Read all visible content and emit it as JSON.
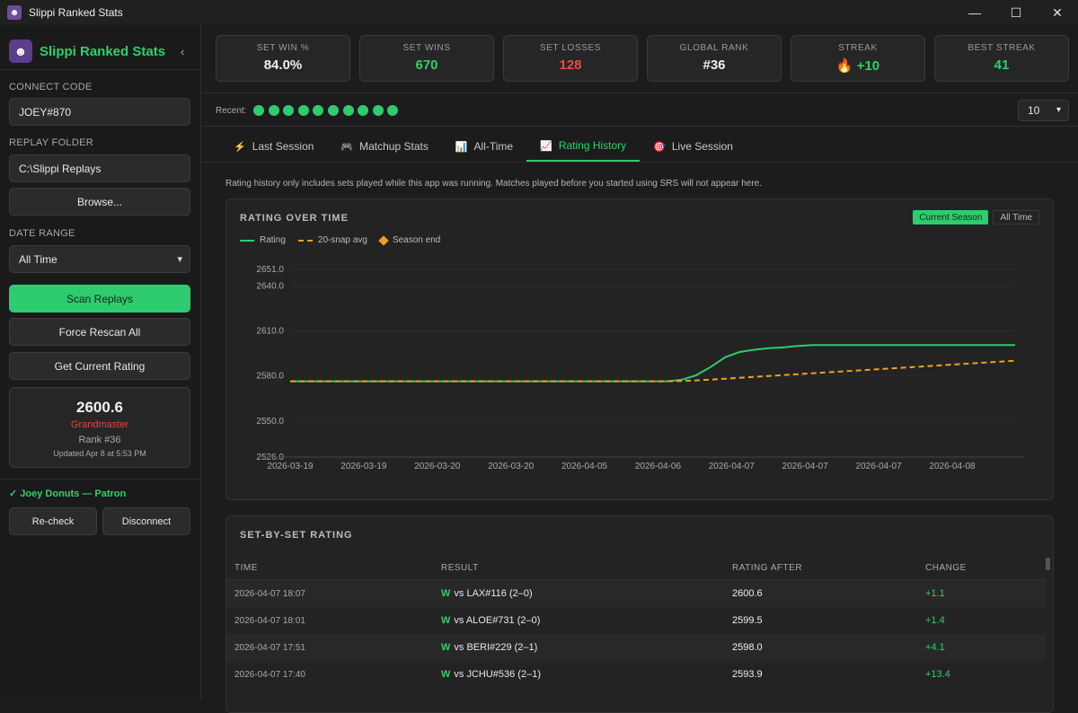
{
  "window": {
    "title": "Slippi Ranked Stats",
    "controls": [
      "—",
      "☐",
      "✕"
    ]
  },
  "sidebar": {
    "brand": "Slippi Ranked Stats",
    "collapse_glyph": "‹",
    "connect_code_label": "CONNECT CODE",
    "connect_code_value": "JOEY#870",
    "replay_folder_label": "REPLAY FOLDER",
    "replay_folder_value": "C:\\Slippi Replays",
    "browse_label": "Browse...",
    "date_range_label": "DATE RANGE",
    "date_range_value": "All Time",
    "scan_label": "Scan Replays",
    "force_rescan_label": "Force Rescan All",
    "get_rating_label": "Get Current Rating",
    "rating": {
      "value": "2600.6",
      "tier": "Grandmaster",
      "rank": "Rank #36",
      "updated": "Updated Apr 8 at 5:53 PM"
    },
    "patron": "✓ Joey Donuts — Patron",
    "recheck_label": "Re-check",
    "disconnect_label": "Disconnect"
  },
  "stats": [
    {
      "label": "SET WIN %",
      "value": "84.0%",
      "tone": "white"
    },
    {
      "label": "SET WINS",
      "value": "670",
      "tone": "green"
    },
    {
      "label": "SET LOSSES",
      "value": "128",
      "tone": "red"
    },
    {
      "label": "GLOBAL RANK",
      "value": "#36",
      "tone": "white"
    },
    {
      "label": "STREAK",
      "value": "🔥 +10",
      "tone": "green"
    },
    {
      "label": "BEST STREAK",
      "value": "41",
      "tone": "green"
    }
  ],
  "recent": {
    "label": "Recent:",
    "results": [
      "W",
      "W",
      "W",
      "W",
      "W",
      "W",
      "W",
      "W",
      "W",
      "W"
    ],
    "count_value": "10"
  },
  "tabs": [
    {
      "label": "Last Session",
      "icon": "⚡"
    },
    {
      "label": "Matchup Stats",
      "icon": "🎮"
    },
    {
      "label": "All-Time",
      "icon": "📊"
    },
    {
      "label": "Rating History",
      "icon": "📈",
      "active": true
    },
    {
      "label": "Live Session",
      "icon": "🎯"
    }
  ],
  "note": "Rating history only includes sets played while this app was running. Matches played before you started using SRS will not appear here.",
  "chart_panel": {
    "title": "RATING OVER TIME",
    "season_current": "Current Season",
    "season_all": "All Time",
    "legend": {
      "rating": "Rating",
      "avg": "20-snap avg",
      "season_end": "Season end"
    }
  },
  "chart_data": {
    "type": "line",
    "y_ticks": [
      "2651.0",
      "2640.0",
      "2610.0",
      "2580.0",
      "2550.0",
      "2526.0"
    ],
    "ylim": [
      2526.0,
      2651.0
    ],
    "x_ticks": [
      "2026-03-19",
      "2026-03-19",
      "2026-03-20",
      "2026-03-20",
      "2026-04-05",
      "2026-04-06",
      "2026-04-07",
      "2026-04-07",
      "2026-04-07",
      "2026-04-08"
    ],
    "series": [
      {
        "name": "Rating",
        "color": "#2ecc6e",
        "values": [
          2576.5,
          2576.5,
          2576.5,
          2576.5,
          2576.5,
          2576.5,
          2576.5,
          2576.5,
          2576.5,
          2576.5,
          2576.5,
          2576.5,
          2576.5,
          2576.5,
          2576.5,
          2576.5,
          2576.5,
          2576.5,
          2576.5,
          2576.5,
          2576.5,
          2576.5,
          2576.5,
          2576.5,
          2576.5,
          2576.5,
          2576.5,
          2577.5,
          2580.5,
          2586.0,
          2592.5,
          2596.0,
          2597.5,
          2598.5,
          2599.0,
          2600.0,
          2600.6,
          2600.6,
          2600.6,
          2600.6,
          2600.6,
          2600.6,
          2600.6,
          2600.6,
          2600.6,
          2600.6,
          2600.6,
          2600.6,
          2600.6,
          2600.6,
          2600.6
        ]
      },
      {
        "name": "20-snap avg",
        "color": "#f0a020",
        "dashed": true,
        "values": [
          2576.5,
          2576.5,
          2576.5,
          2576.5,
          2576.5,
          2576.5,
          2576.5,
          2576.5,
          2576.5,
          2576.5,
          2576.5,
          2576.5,
          2576.5,
          2576.5,
          2576.5,
          2576.5,
          2576.5,
          2576.5,
          2576.5,
          2576.5,
          2576.5,
          2576.5,
          2576.5,
          2576.5,
          2576.5,
          2576.5,
          2576.5,
          2576.7,
          2577.1,
          2577.6,
          2578.2,
          2578.8,
          2579.4,
          2580.0,
          2580.6,
          2581.2,
          2581.8,
          2582.4,
          2583.0,
          2583.6,
          2584.2,
          2584.8,
          2585.4,
          2586.0,
          2586.6,
          2587.2,
          2587.8,
          2588.4,
          2589.0,
          2589.6,
          2590.2
        ]
      }
    ]
  },
  "table": {
    "title": "SET-BY-SET RATING",
    "headers": {
      "time": "TIME",
      "result": "RESULT",
      "rating_after": "RATING AFTER",
      "change": "CHANGE"
    },
    "rows": [
      {
        "time": "2026-04-07 18:07",
        "result": "W",
        "opponent": "vs LAX#116 (2–0)",
        "rating": "2600.6",
        "change": "+1.1"
      },
      {
        "time": "2026-04-07 18:01",
        "result": "W",
        "opponent": "vs ALOE#731 (2–0)",
        "rating": "2599.5",
        "change": "+1.4"
      },
      {
        "time": "2026-04-07 17:51",
        "result": "W",
        "opponent": "vs BERI#229 (2–1)",
        "rating": "2598.0",
        "change": "+4.1"
      },
      {
        "time": "2026-04-07 17:40",
        "result": "W",
        "opponent": "vs JCHU#536 (2–1)",
        "rating": "2593.9",
        "change": "+13.4"
      }
    ]
  }
}
